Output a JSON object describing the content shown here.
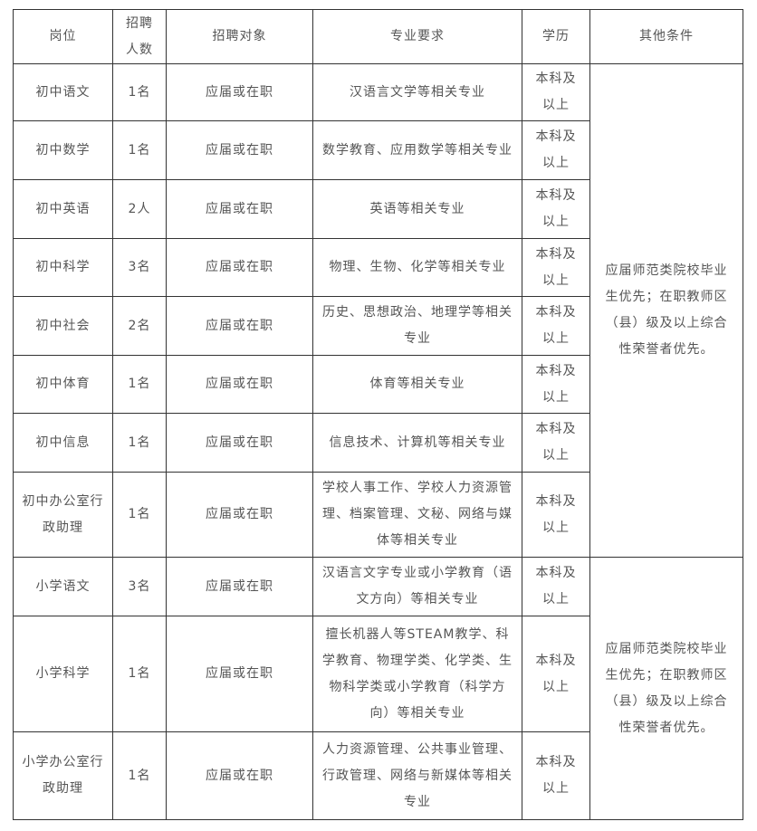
{
  "table": {
    "header": [
      "岗位",
      "招聘人数",
      "招聘对象",
      "专业要求",
      "学历",
      "其他条件"
    ],
    "rows": [
      [
        "初中语文",
        "1名",
        "应届或在职",
        "汉语言文学等相关专业",
        "本科及以上"
      ],
      [
        "初中数学",
        "1名",
        "应届或在职",
        "数学教育、应用数学等相关专业",
        "本科及以上"
      ],
      [
        "初中英语",
        "2人",
        "应届或在职",
        "英语等相关专业",
        "本科及以上"
      ],
      [
        "初中科学",
        "3名",
        "应届或在职",
        "物理、生物、化学等相关专业",
        "本科及以上"
      ],
      [
        "初中社会",
        "2名",
        "应届或在职",
        "历史、思想政治、地理学等相关专业",
        "本科及以上"
      ],
      [
        "初中体育",
        "1名",
        "应届或在职",
        "体育等相关专业",
        "本科及以上"
      ],
      [
        "初中信息",
        "1名",
        "应届或在职",
        "信息技术、计算机等相关专业",
        "本科及以上"
      ],
      [
        "初中办公室行政助理",
        "1名",
        "应届或在职",
        "学校人事工作、学校人力资源管理、档案管理、文秘、网络与媒体等相关专业",
        "本科及以上"
      ],
      [
        "小学语文",
        "3名",
        "应届或在职",
        "汉语言文字专业或小学教育（语文方向）等相关专业",
        "本科及以上"
      ],
      [
        "小学科学",
        "1名",
        "应届或在职",
        "擅长机器人等STEAM教学、科学教育、物理学类、化学类、生物科学类或小学教育（科学方向）等相关专业",
        "本科及以上"
      ],
      [
        "小学办公室行政助理",
        "1名",
        "应届或在职",
        "人力资源管理、公共事业管理、行政管理、网络与新媒体等相关专业",
        "本科及以上"
      ]
    ],
    "other_conditions": [
      "应届师范类院校毕业生优先；在职教师区（县）级及以上综合性荣誉者优先。",
      "应届师范类院校毕业生优先；在职教师区（县）级及以上综合性荣誉者优先。"
    ]
  }
}
